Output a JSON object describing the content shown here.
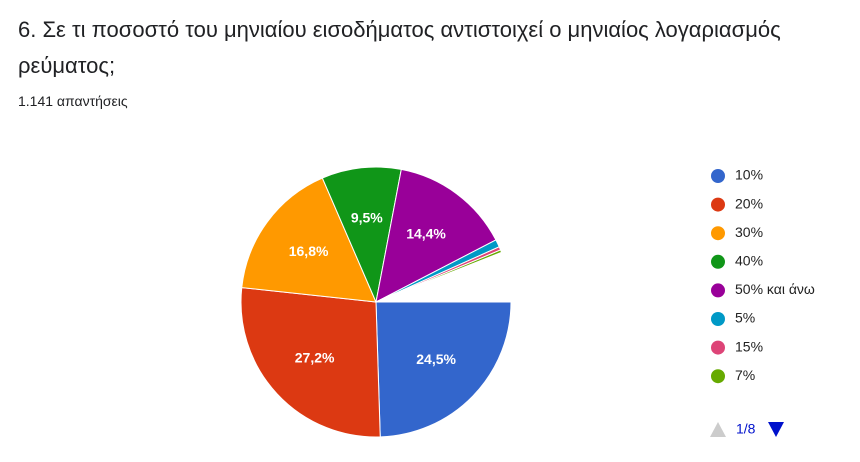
{
  "chart_data": {
    "type": "pie",
    "title": "6. Σε τι ποσοστό του μηνιαίου εισοδήματος αντιστοιχεί ο μηνιαίος λογαριασμός ρεύματος;",
    "subtitle": "1.141 απαντήσεις",
    "categories": [
      "10%",
      "20%",
      "30%",
      "40%",
      "50% και άνω",
      "5%",
      "15%",
      "7%"
    ],
    "values": [
      24.5,
      27.2,
      16.8,
      9.5,
      14.4,
      0.9,
      0.4,
      0.3
    ],
    "value_labels": [
      "24,5%",
      "27,2%",
      "16,8%",
      "9,5%",
      "14,4%",
      null,
      null,
      null
    ],
    "colors": [
      "#3366cc",
      "#dc3912",
      "#ff9900",
      "#109618",
      "#990099",
      "#0099c6",
      "#dd4477",
      "#66aa00"
    ],
    "legend_page": "1/8"
  }
}
